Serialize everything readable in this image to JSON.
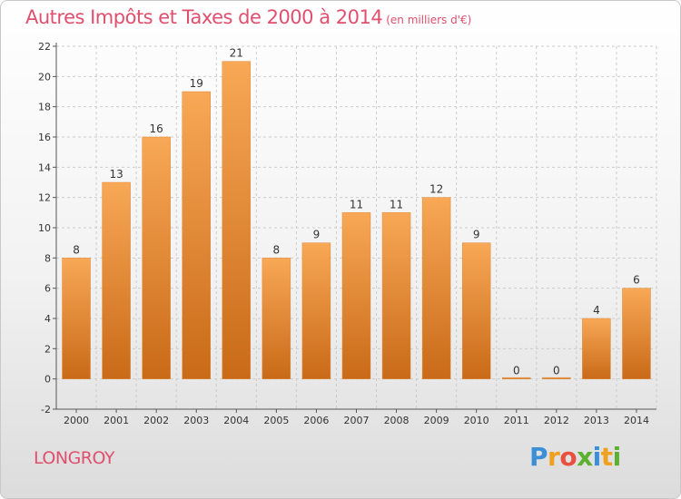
{
  "header": {
    "title": "Autres Impôts et Taxes de 2000 à 2014",
    "unit": "(en milliers d'€)"
  },
  "footer": {
    "city": "LONGROY",
    "logo_text": "Proxiti"
  },
  "colors": {
    "bar_top": "#f8a856",
    "bar_bottom": "#c96a18",
    "title": "#e0506e",
    "grid": "#cccccc"
  },
  "chart_data": {
    "type": "bar",
    "title": "Autres Impôts et Taxes de 2000 à 2014",
    "subtitle": "(en milliers d'€)",
    "categories": [
      "2000",
      "2001",
      "2002",
      "2003",
      "2004",
      "2005",
      "2006",
      "2007",
      "2008",
      "2009",
      "2010",
      "2011",
      "2012",
      "2013",
      "2014"
    ],
    "values": [
      8,
      13,
      16,
      19,
      21,
      8,
      9,
      11,
      11,
      12,
      9,
      0,
      0,
      4,
      6
    ],
    "ylim": [
      -2,
      22
    ],
    "yticks": [
      -2,
      0,
      2,
      4,
      6,
      8,
      10,
      12,
      14,
      16,
      18,
      20,
      22
    ],
    "grid": "horizontal dashed",
    "legend": "none"
  }
}
